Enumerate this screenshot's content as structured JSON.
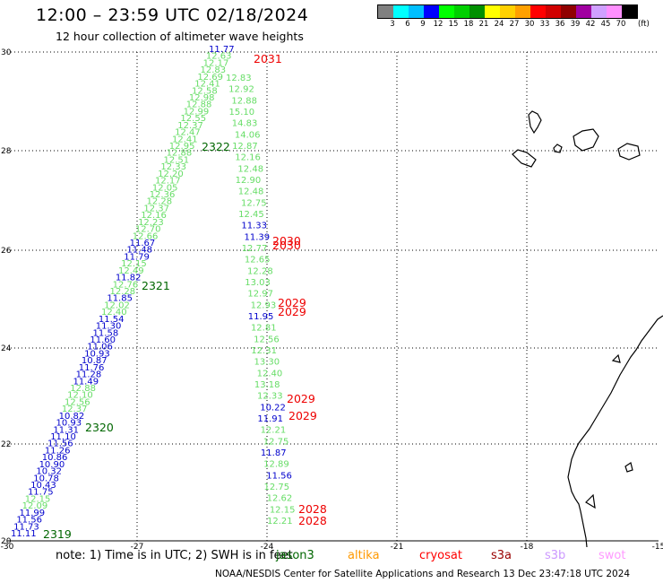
{
  "title": "12:00 – 23:59 UTC 02/18/2024",
  "subtitle": "12 hour collection of altimeter wave heights",
  "legend": {
    "colors": [
      "#808080",
      "#00ffff",
      "#00bfff",
      "#0000ff",
      "#00ff00",
      "#00d000",
      "#009000",
      "#ffff00",
      "#ffd000",
      "#ffa000",
      "#ff0000",
      "#d00000",
      "#900000",
      "#a000a0",
      "#d0a0ff",
      "#ff90ff",
      "#000000"
    ],
    "ticks": [
      "3",
      "6",
      "9",
      "12",
      "15",
      "18",
      "21",
      "24",
      "27",
      "30",
      "33",
      "36",
      "39",
      "42",
      "45",
      "70"
    ],
    "unit": "(ft)"
  },
  "axes": {
    "y_labels": [
      "30",
      "28",
      "26",
      "24",
      "22",
      "20"
    ],
    "x_labels": [
      "-30",
      "-27",
      "-24",
      "-21",
      "-18",
      "-15"
    ]
  },
  "tracks": {
    "diagonal": {
      "values": [
        "11.77",
        "12.63",
        "12.17",
        "12.83",
        "12.69",
        "12.41",
        "12.58",
        "12.98",
        "12.88",
        "12.99",
        "12.55",
        "12.37",
        "12.47",
        "12.41",
        "12.95",
        "12.88",
        "12.51",
        "12.33",
        "12.20",
        "12.17",
        "12.05",
        "12.36",
        "12.28",
        "12.37",
        "12.16",
        "12.23",
        "12.70",
        "12.66",
        "11.67",
        "11.48",
        "11.79",
        "12.15",
        "12.49",
        "11.82",
        "12.76",
        "12.28",
        "11.85",
        "12.02",
        "12.40",
        "11.54",
        "11.30",
        "11.58",
        "11.60",
        "11.06",
        "10.93",
        "10.87",
        "11.76",
        "11.28",
        "11.49",
        "12.88",
        "12.10",
        "12.56",
        "12.37",
        "10.82",
        "10.93",
        "11.31",
        "11.10",
        "11.56",
        "11.26",
        "10.86",
        "10.90",
        "10.32",
        "10.78",
        "10.43",
        "11.75",
        "12.15",
        "12.09",
        "11.99",
        "11.56",
        "11.73",
        "11.11"
      ],
      "blue_indices": [
        0,
        28,
        29,
        30,
        33,
        36,
        39,
        40,
        41,
        42,
        43,
        44,
        45,
        46,
        47,
        48,
        53,
        54,
        55,
        56,
        57,
        58,
        59,
        60,
        61,
        62,
        63,
        64,
        67,
        68,
        69,
        70
      ]
    },
    "vertical": {
      "values": [
        "12.83",
        "12.92",
        "12.88",
        "15.10",
        "14.83",
        "14.06",
        "12.87",
        "12.16",
        "12.48",
        "12.90",
        "12.48",
        "12.75",
        "12.45",
        "11.33",
        "11.39",
        "12.77",
        "12.65",
        "12.28",
        "13.03",
        "12.97",
        "12.93",
        "11.95",
        "12.81",
        "12.56",
        "12.31",
        "13.30",
        "12.40",
        "13.18",
        "12.33",
        "10.22",
        "11.91",
        "12.21",
        "12.75",
        "11.87",
        "12.89",
        "11.56",
        "12.75",
        "12.62",
        "12.15",
        "12.21"
      ],
      "blue_indices": [
        13,
        14,
        21,
        29,
        30,
        33,
        35
      ]
    }
  },
  "time_labels_green": [
    "2322",
    "2321",
    "2320",
    "2319"
  ],
  "time_labels_red": [
    "2031",
    "2030",
    "2030",
    "2029",
    "2029",
    "2029",
    "2029",
    "2028",
    "2028"
  ],
  "footer": {
    "note": "note: 1) Time is in UTC; 2) SWH is in feet",
    "satellites": [
      {
        "name": "jason3",
        "color": "#006600"
      },
      {
        "name": "altika",
        "color": "#ff9900"
      },
      {
        "name": "cryosat",
        "color": "#ff0000"
      },
      {
        "name": "s3a",
        "color": "#990000"
      },
      {
        "name": "s3b",
        "color": "#cc99ff"
      },
      {
        "name": "swot",
        "color": "#ff99ff"
      }
    ],
    "credit": "NOAA/NESDIS Center for Satellite Applications and Research    13 Dec 23:47:18 UTC 2024"
  }
}
